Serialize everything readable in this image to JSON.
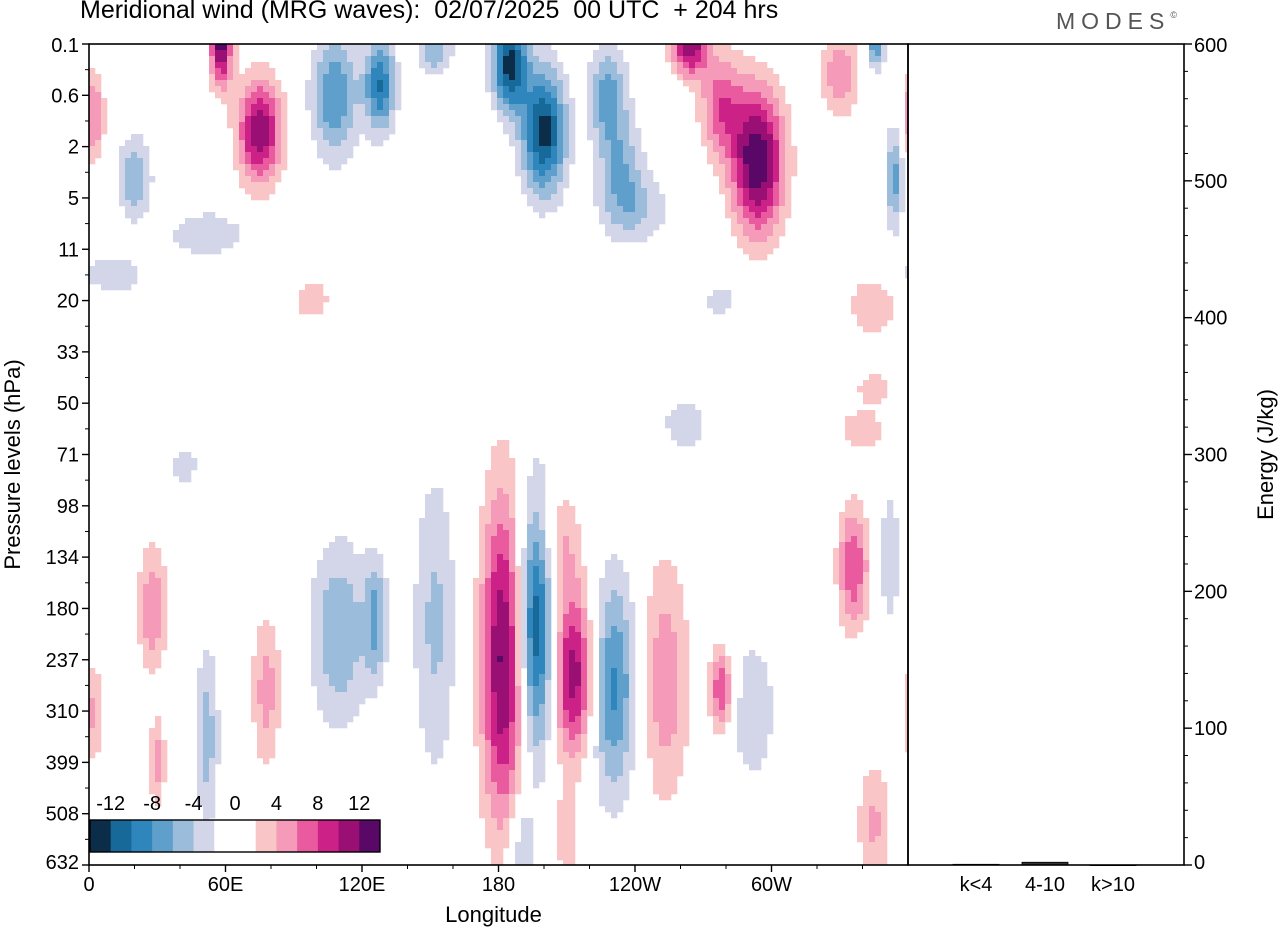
{
  "title": "Meridional wind (MRG waves):  02/07/2025  00 UTC  + 204 hrs",
  "logo": "MODES",
  "chart_data": [
    {
      "type": "heatmap",
      "xlabel": "Longitude",
      "ylabel": "Pressure levels (hPa)",
      "x_ticks": [
        "0",
        "60E",
        "120E",
        "180",
        "120W",
        "60W"
      ],
      "y_ticks": [
        "0.1",
        "0.6",
        "2",
        "5",
        "11",
        "20",
        "33",
        "50",
        "71",
        "98",
        "134",
        "180",
        "237",
        "310",
        "399",
        "508",
        "632"
      ],
      "colorbar": {
        "labels": [
          "-12",
          "-8",
          "-4",
          "0",
          "4",
          "8",
          "12"
        ],
        "colors": [
          "#0b2d4a",
          "#17699a",
          "#2f86bd",
          "#5f9fcc",
          "#9bbcdb",
          "#d2d6e8",
          "#ffffff",
          "#ffffff",
          "#f9c5c6",
          "#f59ab8",
          "#e95a9f",
          "#cc2288",
          "#9a0f74",
          "#5a0867"
        ]
      },
      "blobs": [
        {
          "lon": 58,
          "level": 0,
          "value": 13,
          "wl": 1.5,
          "wp": 0.8
        },
        {
          "lon": 75,
          "level": 1.7,
          "value": 12,
          "wl": 3,
          "wp": 1.0
        },
        {
          "lon": 2,
          "level": 1.4,
          "value": 6,
          "wl": 1.5,
          "wp": 0.9
        },
        {
          "lon": 20,
          "level": 2.6,
          "value": -6,
          "wl": 2.3,
          "wp": 0.8
        },
        {
          "lon": 108,
          "level": 1.0,
          "value": -8,
          "wl": 3.2,
          "wp": 1.2
        },
        {
          "lon": 128,
          "level": 0.8,
          "value": -10,
          "wl": 2.1,
          "wp": 0.9
        },
        {
          "lon": 152,
          "level": 0.1,
          "value": -6,
          "wl": 2.4,
          "wp": 0.5
        },
        {
          "lon": 185,
          "level": 0.4,
          "value": -13,
          "wl": 2.4,
          "wp": 0.9
        },
        {
          "lon": 200,
          "level": 1.7,
          "value": -13,
          "wl": 3,
          "wp": 1.2
        },
        {
          "lon": 228,
          "level": 1.0,
          "value": -7,
          "wl": 2.6,
          "wp": 1.0
        },
        {
          "lon": 234,
          "level": 2.4,
          "value": -5,
          "wl": 3,
          "wp": 1.0
        },
        {
          "lon": 264,
          "level": 0.0,
          "value": 12,
          "wl": 2.5,
          "wp": 0.6
        },
        {
          "lon": 294,
          "level": 2.3,
          "value": 14,
          "wl": 3.6,
          "wp": 1.4
        },
        {
          "lon": 278,
          "level": 1.2,
          "value": 7,
          "wl": 3,
          "wp": 1.0
        },
        {
          "lon": 330,
          "level": 0.6,
          "value": 6,
          "wl": 2.5,
          "wp": 0.8
        },
        {
          "lon": 346,
          "level": 0.0,
          "value": -8,
          "wl": 1.2,
          "wp": 0.5
        },
        {
          "lon": 354,
          "level": 2.6,
          "value": -7,
          "wl": 1.2,
          "wp": 1.0
        },
        {
          "lon": 52,
          "level": 3.7,
          "value": -3.5,
          "wl": 6,
          "wp": 0.5
        },
        {
          "lon": 10,
          "level": 4.5,
          "value": -3.5,
          "wl": 5,
          "wp": 0.4
        },
        {
          "lon": 240,
          "level": 3.2,
          "value": -4,
          "wl": 5,
          "wp": 0.7
        },
        {
          "lon": 98,
          "level": 5.0,
          "value": 3.8,
          "wl": 2.5,
          "wp": 0.4
        },
        {
          "lon": 278,
          "level": 5.0,
          "value": -3.5,
          "wl": 2.5,
          "wp": 0.3
        },
        {
          "lon": 345,
          "level": 5.1,
          "value": 4.0,
          "wl": 3.5,
          "wp": 0.6
        },
        {
          "lon": 345,
          "level": 6.7,
          "value": 3.6,
          "wl": 2.5,
          "wp": 0.3
        },
        {
          "lon": 340,
          "level": 7.5,
          "value": 4.0,
          "wl": 3,
          "wp": 0.4
        },
        {
          "lon": 262,
          "level": 7.4,
          "value": -4.0,
          "wl": 3,
          "wp": 0.5
        },
        {
          "lon": 42,
          "level": 8.2,
          "value": -3.5,
          "wl": 2,
          "wp": 0.4
        },
        {
          "lon": 28,
          "level": 11.0,
          "value": 6,
          "wl": 2,
          "wp": 1.2
        },
        {
          "lon": 52,
          "level": 13.5,
          "value": -5,
          "wl": 1.6,
          "wp": 1.8
        },
        {
          "lon": 30,
          "level": 14.0,
          "value": 5,
          "wl": 1.1,
          "wp": 0.9
        },
        {
          "lon": 78,
          "level": 12.6,
          "value": 5,
          "wl": 2,
          "wp": 1.5
        },
        {
          "lon": 110,
          "level": 11.5,
          "value": -6,
          "wl": 4,
          "wp": 1.8
        },
        {
          "lon": 126,
          "level": 11.2,
          "value": -6,
          "wl": 1.5,
          "wp": 1.2
        },
        {
          "lon": 152,
          "level": 11.3,
          "value": -4.5,
          "wl": 3,
          "wp": 3.0
        },
        {
          "lon": 182,
          "level": 12.0,
          "value": 12.5,
          "wl": 3,
          "wp": 3.2
        },
        {
          "lon": 197,
          "level": 11.3,
          "value": -13,
          "wl": 2.6,
          "wp": 2.5
        },
        {
          "lon": 206,
          "level": 9.8,
          "value": 5,
          "wl": 3,
          "wp": 1.2
        },
        {
          "lon": 213,
          "level": 12.3,
          "value": 12,
          "wl": 3.2,
          "wp": 1.6
        },
        {
          "lon": 230,
          "level": 12.5,
          "value": -9,
          "wl": 3.4,
          "wp": 2.1
        },
        {
          "lon": 253,
          "level": 12.4,
          "value": 5.5,
          "wl": 3.4,
          "wp": 2.4
        },
        {
          "lon": 278,
          "level": 12.6,
          "value": 8,
          "wl": 1.6,
          "wp": 0.8
        },
        {
          "lon": 292,
          "level": 13.0,
          "value": -4,
          "wl": 3,
          "wp": 1.4
        },
        {
          "lon": 336,
          "level": 10.2,
          "value": 8,
          "wl": 2.1,
          "wp": 1.2
        },
        {
          "lon": 352,
          "level": 10.0,
          "value": -4,
          "wl": 1.5,
          "wp": 1.3
        },
        {
          "lon": 345,
          "level": 15.2,
          "value": 4.5,
          "wl": 2.2,
          "wp": 1.2
        },
        {
          "lon": 190,
          "level": 15.7,
          "value": -4.5,
          "wl": 1.8,
          "wp": 1.0
        },
        {
          "lon": 210,
          "level": 15.4,
          "value": 3.8,
          "wl": 1.5,
          "wp": 1.0
        },
        {
          "lon": 2,
          "level": 13.0,
          "value": 4.5,
          "wl": 1.3,
          "wp": 1.0
        }
      ]
    },
    {
      "type": "bar",
      "categories": [
        "k<4",
        "4-10",
        "k>10"
      ],
      "values": [
        0.5,
        2,
        0
      ],
      "ylabel": "Energy (J/kg)",
      "ylim": [
        0,
        600
      ],
      "y_ticks": [
        "0",
        "100",
        "200",
        "300",
        "400",
        "500",
        "600"
      ]
    }
  ]
}
